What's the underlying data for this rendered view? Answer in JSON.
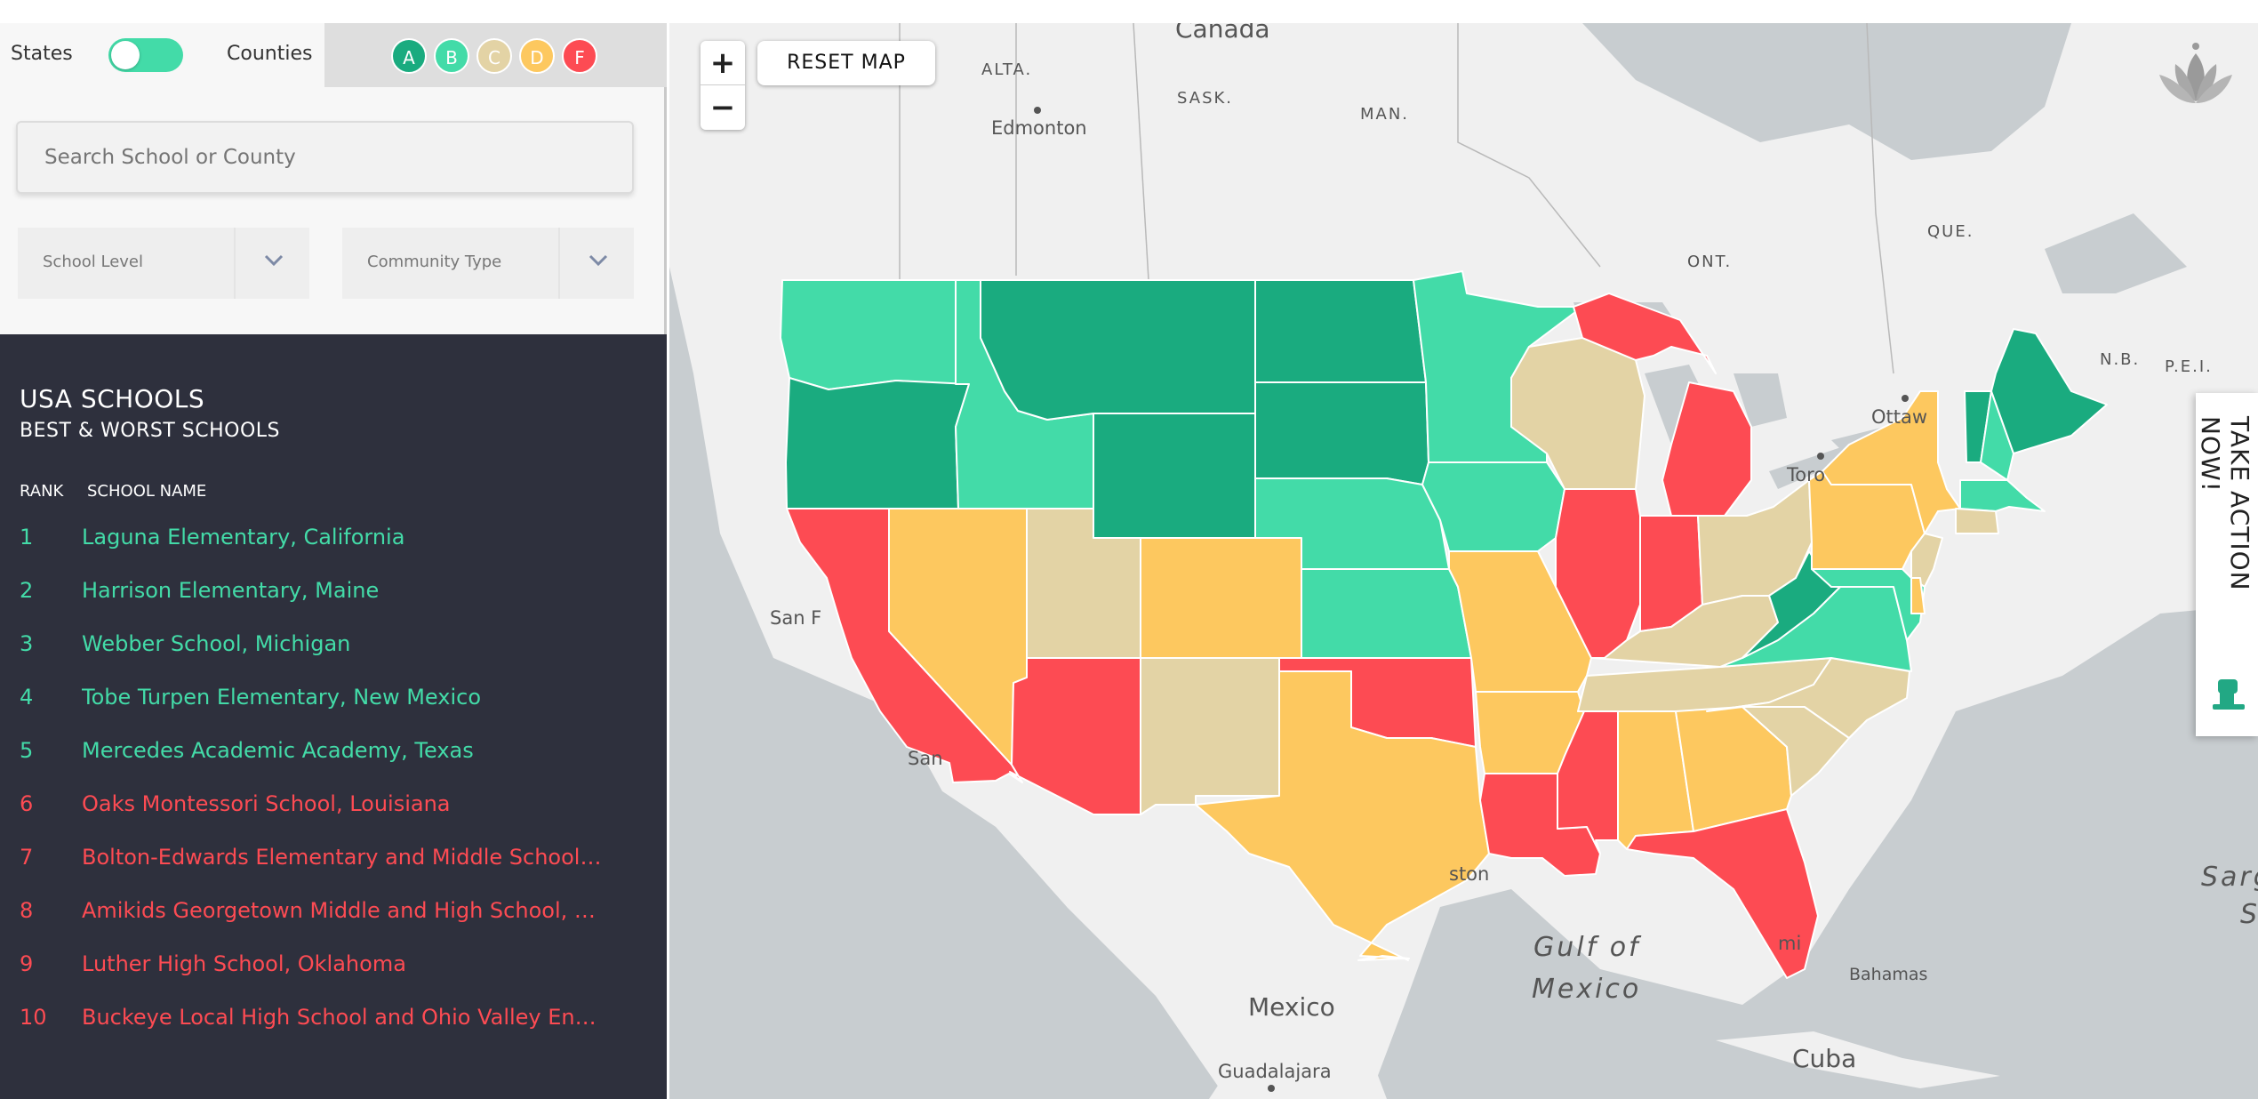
{
  "toggle": {
    "left_label": "States",
    "right_label": "Counties",
    "active": "States"
  },
  "grades": [
    {
      "letter": "A",
      "color": "#1aab7f"
    },
    {
      "letter": "B",
      "color": "#43dba8"
    },
    {
      "letter": "C",
      "color": "#e3d3a5"
    },
    {
      "letter": "D",
      "color": "#fdc85f"
    },
    {
      "letter": "F",
      "color": "#fd4b53"
    }
  ],
  "search": {
    "placeholder": "Search School or County"
  },
  "filters": {
    "school_level": "School Level",
    "community_type": "Community Type"
  },
  "panel": {
    "title": "USA SCHOOLS",
    "subtitle": "BEST & WORST SCHOOLS",
    "col_rank": "RANK",
    "col_name": "SCHOOL NAME"
  },
  "schools": [
    {
      "rank": "1",
      "name": "Laguna Elementary, California",
      "grade": "best"
    },
    {
      "rank": "2",
      "name": "Harrison Elementary, Maine",
      "grade": "best"
    },
    {
      "rank": "3",
      "name": "Webber School, Michigan",
      "grade": "best"
    },
    {
      "rank": "4",
      "name": "Tobe Turpen Elementary, New Mexico",
      "grade": "best"
    },
    {
      "rank": "5",
      "name": "Mercedes Academic Academy, Texas",
      "grade": "best"
    },
    {
      "rank": "6",
      "name": "Oaks Montessori School, Louisiana",
      "grade": "worst"
    },
    {
      "rank": "7",
      "name": "Bolton-Edwards Elementary and Middle School, ...",
      "grade": "worst"
    },
    {
      "rank": "8",
      "name": "Amikids Georgetown Middle and High School, So...",
      "grade": "worst"
    },
    {
      "rank": "9",
      "name": "Luther High School, Oklahoma",
      "grade": "worst"
    },
    {
      "rank": "10",
      "name": "Buckeye Local High School and Ohio Valley Energ...",
      "grade": "worst"
    }
  ],
  "colors": {
    "best_text": "#43dba8",
    "worst_text": "#fd4b53",
    "panel_bg": "#2e303d",
    "land": "#f0f0f0",
    "water": "#c8cdd0"
  },
  "map": {
    "zoom_in": "+",
    "zoom_out": "−",
    "reset_label": "RESET MAP",
    "take_action_label": "TAKE ACTION NOW!",
    "logo_icon": "lotus-icon",
    "action_icon": "raised-fist-icon",
    "labels": {
      "canada": "Canada",
      "alta": "ALTA.",
      "sask": "SASK.",
      "man": "MAN.",
      "ont": "ONT.",
      "que": "QUE.",
      "nb": "N.B.",
      "pei": "P.E.I.",
      "edmonton": "Edmonton",
      "ottawa": "Ottaw",
      "toronto": "Toro",
      "san_francisco": "San F",
      "san_diego": "San",
      "houston": "ston",
      "miami": "mi",
      "bahamas": "Bahamas",
      "gulf_line1": "Gulf of",
      "gulf_line2": "Mexico",
      "mexico": "Mexico",
      "cuba": "Cuba",
      "guadalajara": "Guadalajara",
      "sargasso_line1": "Sarg",
      "sargasso_line2": "S"
    },
    "state_grades": {
      "WA": "B",
      "OR": "A",
      "CA": "F",
      "ID": "B",
      "NV": "D",
      "MT": "A",
      "WY": "A",
      "UT": "C",
      "AZ": "F",
      "CO": "D",
      "NM": "C",
      "ND": "A",
      "SD": "A",
      "NE": "B",
      "KS": "B",
      "OK": "F",
      "TX": "D",
      "MN": "B",
      "IA": "B",
      "MO": "D",
      "AR": "D",
      "LA": "F",
      "WI": "C",
      "IL": "F",
      "MI": "F",
      "IN": "F",
      "OH": "C",
      "KY": "C",
      "TN": "C",
      "MS": "F",
      "AL": "D",
      "GA": "D",
      "FL": "F",
      "SC": "C",
      "NC": "C",
      "VA": "B",
      "WV": "A",
      "PA": "D",
      "NY": "D",
      "ME": "A",
      "VT": "A",
      "NH": "B",
      "MA": "B",
      "CT": "C",
      "NJ": "C",
      "MD": "B",
      "DE": "D"
    }
  }
}
